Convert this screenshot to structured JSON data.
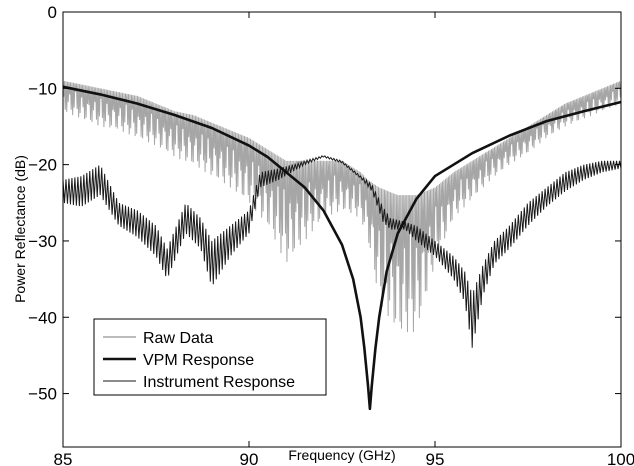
{
  "chart_data": {
    "type": "line",
    "title": "",
    "xlabel": "Frequency (GHz)",
    "ylabel": "Power Reflectance (dB)",
    "xlim": [
      85,
      100
    ],
    "ylim": [
      -57,
      0
    ],
    "xticks": [
      85,
      90,
      95,
      100
    ],
    "yticks": [
      0,
      -10,
      -20,
      -30,
      -40,
      -50
    ],
    "xtick_labels": [
      "85",
      "90",
      "95",
      "100"
    ],
    "ytick_labels": [
      "0",
      "−10",
      "−20",
      "−30",
      "−40",
      "−50"
    ],
    "grid": false,
    "legend_position": "bottom-left",
    "series": [
      {
        "name": "Raw Data",
        "color": "#a6a6a6",
        "style": "oscillating-envelope",
        "x": [
          85,
          85.5,
          86,
          86.5,
          87,
          87.5,
          88,
          88.5,
          89,
          89.5,
          90,
          90.5,
          91,
          91.5,
          92,
          92.5,
          93,
          93.2,
          93.5,
          94,
          94.5,
          95,
          95.5,
          96,
          96.5,
          97,
          97.5,
          98,
          98.5,
          99,
          99.5,
          100
        ],
        "upper": [
          -9,
          -9.5,
          -10,
          -10.5,
          -11,
          -12,
          -13,
          -13.5,
          -14.5,
          -15.5,
          -16.5,
          -18,
          -19.5,
          -19.5,
          -19.5,
          -19.5,
          -21,
          -22,
          -23,
          -24,
          -24,
          -23,
          -21,
          -19.5,
          -18,
          -16.5,
          -15,
          -13.5,
          -12,
          -11,
          -10,
          -9
        ],
        "lower": [
          -13,
          -14,
          -15,
          -15.5,
          -16.5,
          -17.5,
          -19,
          -20,
          -21.5,
          -23,
          -25,
          -28,
          -33,
          -30,
          -27,
          -26,
          -27,
          -30,
          -38,
          -42,
          -42,
          -33,
          -27,
          -24.5,
          -22,
          -20,
          -18.5,
          -16.5,
          -15,
          -14,
          -13,
          -12
        ]
      },
      {
        "name": "VPM Response",
        "color": "#111111",
        "x": [
          85,
          86,
          87,
          88,
          89,
          90,
          90.5,
          91,
          91.5,
          92,
          92.5,
          92.8,
          93,
          93.1,
          93.2,
          93.25,
          93.3,
          93.4,
          93.5,
          93.7,
          94,
          94.5,
          95,
          96,
          97,
          98,
          99,
          100
        ],
        "y": [
          -9.8,
          -10.8,
          -12,
          -13.5,
          -15.2,
          -17.5,
          -19,
          -21,
          -23,
          -26,
          -30.5,
          -35,
          -40,
          -44,
          -49,
          -52,
          -49,
          -44,
          -40,
          -34,
          -29,
          -24.5,
          -21.5,
          -18.5,
          -16.2,
          -14.3,
          -13,
          -11.8
        ]
      },
      {
        "name": "Instrument Response",
        "color": "#1a1a1a",
        "style": "oscillating-envelope",
        "x": [
          85,
          85.5,
          86,
          86.5,
          87,
          87.5,
          87.8,
          88.3,
          88.7,
          89,
          89.5,
          90,
          90.3,
          90.8,
          91.5,
          92,
          92.5,
          93,
          93.3,
          93.6,
          93.8,
          94.2,
          94.5,
          95,
          95.5,
          95.8,
          96,
          96.3,
          96.6,
          97,
          97.5,
          98,
          98.5,
          99,
          99.5,
          100
        ],
        "upper": [
          -22,
          -21.5,
          -20,
          -25,
          -26,
          -28,
          -31,
          -25,
          -27,
          -30,
          -28,
          -26,
          -21,
          -20.5,
          -19.5,
          -18.8,
          -19.5,
          -21.5,
          -22.5,
          -25.5,
          -27,
          -27.5,
          -28,
          -30,
          -32,
          -34,
          -37,
          -33,
          -30,
          -28,
          -25,
          -23,
          -21,
          -20,
          -19.5,
          -19.5
        ],
        "lower": [
          -25,
          -25.5,
          -24,
          -28,
          -29.5,
          -32,
          -35,
          -29,
          -31,
          -36,
          -32,
          -29,
          -23,
          -22,
          -20,
          -19,
          -19.8,
          -21.8,
          -23.5,
          -27.5,
          -28.5,
          -28.5,
          -30,
          -32,
          -35,
          -38,
          -44,
          -37,
          -33,
          -31,
          -28,
          -25.5,
          -23.5,
          -22,
          -21,
          -20.5
        ]
      }
    ]
  }
}
